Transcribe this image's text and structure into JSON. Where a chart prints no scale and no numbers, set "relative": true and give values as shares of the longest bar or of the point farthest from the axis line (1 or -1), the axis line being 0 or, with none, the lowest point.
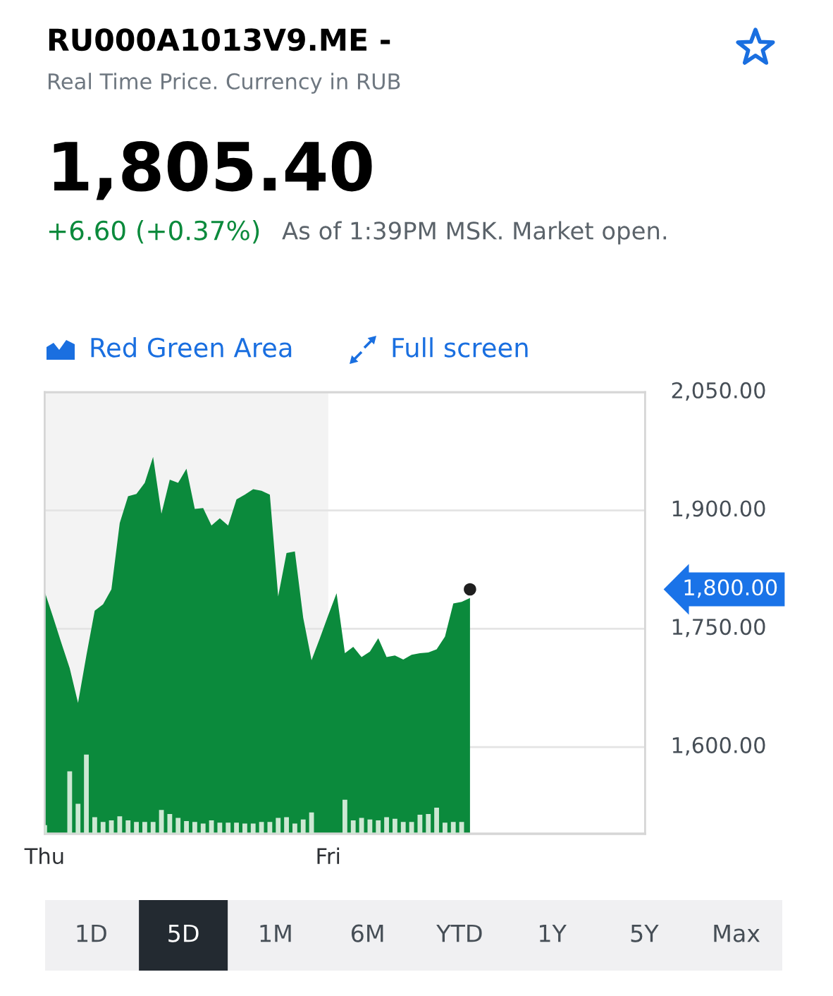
{
  "chart_data": [
    {
      "type": "area",
      "title": "RU000A1013V9.ME -",
      "subtitle": "Real Time Price. Currency in RUB",
      "annotations": [
        "1,805.40",
        "+6.60 (+0.37%)",
        "As of 1:39PM MSK. Market open.",
        "Red Green Area",
        "Full screen",
        "1,800.00",
        "1D",
        "5D",
        "1M",
        "6M",
        "YTD",
        "1Y",
        "5Y",
        "Max"
      ],
      "categories": [
        "Thu",
        null,
        null,
        null,
        null,
        null,
        null,
        null,
        null,
        null,
        null,
        null,
        null,
        null,
        null,
        null,
        null,
        null,
        null,
        null,
        null,
        null,
        null,
        null,
        null,
        null,
        null,
        null,
        null,
        null,
        null,
        null,
        null,
        null,
        "Fri",
        null,
        null,
        null,
        null,
        null,
        null,
        null,
        null,
        null,
        null,
        null,
        null,
        null,
        null,
        null,
        null,
        null,
        null,
        null,
        null,
        null,
        null,
        null,
        null,
        null,
        null,
        null,
        null,
        null,
        null,
        null,
        null,
        null,
        null,
        null,
        null,
        null,
        null
      ],
      "ylim": [
        1490,
        2050
      ],
      "yticks": [
        {
          "value": 1600,
          "label": "1,600.00"
        },
        {
          "value": 1750,
          "label": "1,750.00"
        },
        {
          "value": 1900,
          "label": "1,900.00"
        },
        {
          "value": 2050,
          "label": "2,050.00"
        }
      ],
      "grid": "y",
      "bands": [
        {
          "axis": "x",
          "from": "Thu",
          "to": "Fri",
          "color": "#f3f3f3"
        }
      ],
      "series": [
        {
          "type": "area",
          "color": "#0b8a3c",
          "values": [
            1797,
            1765,
            1732,
            1700,
            1656,
            1716,
            1773,
            1781,
            1800,
            1884,
            1918,
            1921,
            1935,
            1968,
            1896,
            1939,
            1935,
            1953,
            1902,
            1903,
            1881,
            1890,
            1881,
            1914,
            1920,
            1927,
            1925,
            1920,
            1791,
            1846,
            1848,
            1764,
            1710,
            1738,
            1767,
            1795,
            1719,
            1727,
            1714,
            1721,
            1738,
            1714,
            1716,
            1711,
            1717,
            1719,
            1720,
            1724,
            1740,
            1782,
            1784,
            1789,
            null,
            null,
            null,
            null,
            null,
            null,
            null,
            null,
            null,
            null,
            null,
            null,
            null,
            null,
            null,
            null,
            null,
            null,
            null,
            null,
            null
          ]
        },
        {
          "type": "scatter",
          "marker": "circle",
          "color": "#1f1f1f",
          "values": [
            null,
            null,
            null,
            null,
            null,
            null,
            null,
            null,
            null,
            null,
            null,
            null,
            null,
            null,
            null,
            null,
            null,
            null,
            null,
            null,
            null,
            null,
            null,
            null,
            null,
            null,
            null,
            null,
            null,
            null,
            null,
            null,
            null,
            null,
            null,
            null,
            null,
            null,
            null,
            null,
            null,
            null,
            null,
            null,
            null,
            null,
            null,
            null,
            null,
            null,
            null,
            1800,
            null,
            null,
            null,
            null,
            null,
            null,
            null,
            null,
            null,
            null,
            null,
            null,
            null,
            null,
            null,
            null,
            null,
            null,
            null,
            null,
            null
          ]
        }
      ]
    },
    {
      "type": "bar",
      "relative": true,
      "color": "#cde8d3",
      "categories": [
        null,
        null,
        null,
        null,
        null,
        null,
        null,
        null,
        null,
        null,
        null,
        null,
        null,
        null,
        null,
        null,
        null,
        null,
        null,
        null,
        null,
        null,
        null,
        null,
        null,
        null,
        null,
        null,
        null,
        null,
        null,
        null,
        null,
        null,
        null,
        null,
        null,
        null,
        null,
        null,
        null,
        null,
        null,
        null,
        null,
        null,
        null,
        null,
        null,
        null,
        null,
        null,
        null,
        null,
        null,
        null,
        null,
        null,
        null,
        null,
        null,
        null,
        null,
        null,
        null,
        null,
        null,
        null,
        null,
        null,
        null,
        null,
        null
      ],
      "values": [
        0.11,
        null,
        null,
        0.79,
        0.38,
        1,
        0.21,
        0.15,
        0.17,
        0.22,
        0.17,
        0.15,
        0.15,
        0.15,
        0.3,
        0.25,
        0.2,
        0.16,
        0.15,
        0.13,
        0.17,
        0.14,
        0.14,
        0.14,
        0.13,
        0.13,
        0.15,
        0.15,
        0.2,
        0.21,
        0.13,
        0.18,
        0.27,
        null,
        null,
        null,
        0.43,
        0.17,
        0.2,
        0.18,
        0.17,
        0.21,
        0.19,
        0.15,
        0.15,
        0.24,
        0.25,
        0.33,
        0.14,
        0.15,
        0.15,
        null,
        null,
        null,
        null,
        null,
        null,
        null,
        null,
        null,
        null,
        null,
        null,
        null,
        null,
        null,
        null,
        null,
        null,
        null,
        null,
        null,
        null
      ]
    }
  ]
}
